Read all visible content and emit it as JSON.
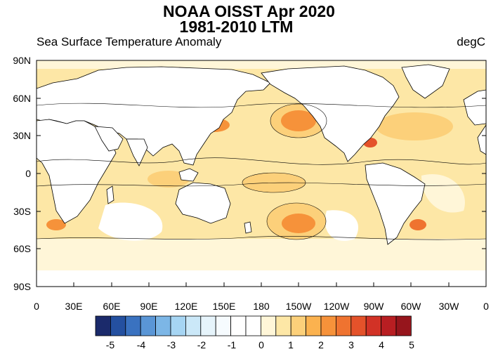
{
  "header": {
    "title_line1": "NOAA OISST Apr 2020",
    "title_line2": "1981-2010 LTM",
    "subtitle_left": "Sea Surface Temperature Anomaly",
    "subtitle_right": "degC"
  },
  "axes": {
    "y_ticks": [
      "90N",
      "60N",
      "30N",
      "0",
      "30S",
      "60S",
      "90S"
    ],
    "x_ticks": [
      "0",
      "30E",
      "60E",
      "90E",
      "120E",
      "150E",
      "180",
      "150W",
      "120W",
      "90W",
      "60W",
      "30W",
      "0"
    ]
  },
  "colorbar": {
    "labels": [
      "-5",
      "-4",
      "-3",
      "-2",
      "-1",
      "0",
      "1",
      "2",
      "3",
      "4",
      "5"
    ],
    "colors": [
      "#1b2a6b",
      "#2450a0",
      "#3a72c0",
      "#5a96d6",
      "#7cb6e6",
      "#a6d5f3",
      "#cbe8f8",
      "#e6f4fb",
      "#f6fbfe",
      "#ffffff",
      "#ffffff",
      "#fff6d8",
      "#fde7a6",
      "#fcd07a",
      "#fbb24f",
      "#f6923a",
      "#ef7330",
      "#e4522a",
      "#d23226",
      "#b81e22",
      "#96151c"
    ]
  },
  "map": {
    "ocean_base_color": "#fde7a6",
    "land_color": "#ffffff",
    "contour_color": "#000000"
  }
}
